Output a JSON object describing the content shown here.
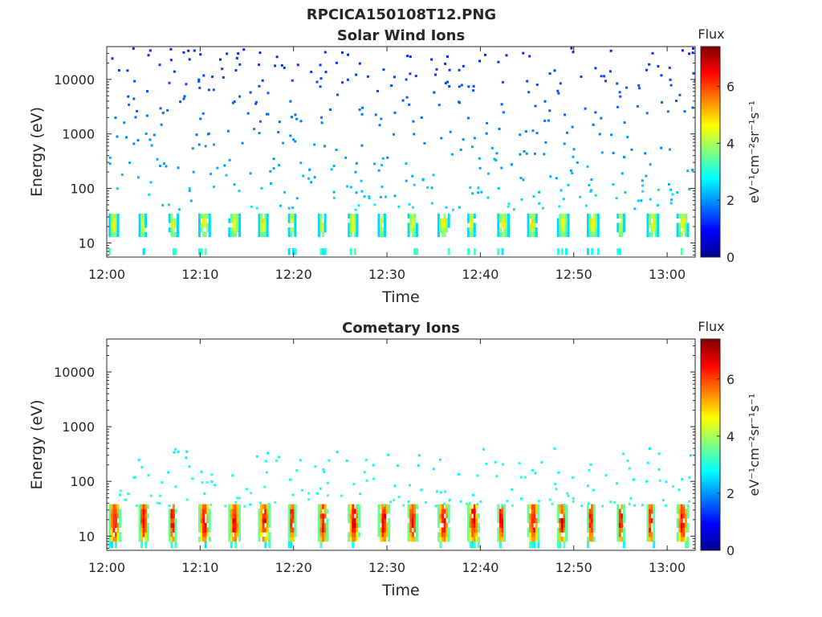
{
  "figure_title": "RPCICA150108T12.PNG",
  "colormap": [
    "#00008f",
    "#0000ff",
    "#0080ff",
    "#00ffff",
    "#80ff80",
    "#ffff00",
    "#ff8000",
    "#ff0000",
    "#800000"
  ],
  "chart_data": [
    {
      "type": "heatmap",
      "title": "Solar Wind Ions",
      "xlabel": "Time",
      "ylabel": "Energy (eV)",
      "x_ticks": [
        "12:00",
        "12:10",
        "12:20",
        "12:30",
        "12:40",
        "12:50",
        "13:00"
      ],
      "x_tick_minutes": [
        0,
        10,
        20,
        30,
        40,
        50,
        60
      ],
      "xlim_minutes": [
        0,
        63
      ],
      "ylim": [
        5.5,
        40000
      ],
      "yscale": "log",
      "y_ticks": [
        "10",
        "100",
        "1000",
        "10000"
      ],
      "y_tick_values": [
        10,
        100,
        1000,
        10000
      ],
      "colorbar": {
        "label": "Flux",
        "units": "eV⁻¹cm⁻²sr⁻¹s⁻¹",
        "range": [
          0,
          7.4
        ],
        "ticks": [
          0,
          2,
          4,
          6
        ]
      },
      "sweep_period_minutes": 3.2,
      "dense_band": {
        "energy_range": [
          13,
          30
        ],
        "flux_min": 2.5,
        "flux_max": 5.0
      },
      "sparse_flux_range": [
        1.2,
        2.8
      ]
    },
    {
      "type": "heatmap",
      "title": "Cometary Ions",
      "xlabel": "Time",
      "ylabel": "Energy (eV)",
      "x_ticks": [
        "12:00",
        "12:10",
        "12:20",
        "12:30",
        "12:40",
        "12:50",
        "13:00"
      ],
      "x_tick_minutes": [
        0,
        10,
        20,
        30,
        40,
        50,
        60
      ],
      "xlim_minutes": [
        0,
        63
      ],
      "ylim": [
        5.5,
        40000
      ],
      "yscale": "log",
      "y_ticks": [
        "10",
        "100",
        "1000",
        "10000"
      ],
      "y_tick_values": [
        10,
        100,
        1000,
        10000
      ],
      "colorbar": {
        "label": "Flux",
        "units": "eV⁻¹cm⁻²sr⁻¹s⁻¹",
        "range": [
          0,
          7.4
        ],
        "ticks": [
          0,
          2,
          4,
          6
        ]
      },
      "sweep_period_minutes": 3.2,
      "dense_band": {
        "energy_range": [
          8,
          32
        ],
        "flux_min": 3.5,
        "flux_max": 7.2
      },
      "sparse_flux_range": [
        1.8,
        3.4
      ]
    }
  ]
}
